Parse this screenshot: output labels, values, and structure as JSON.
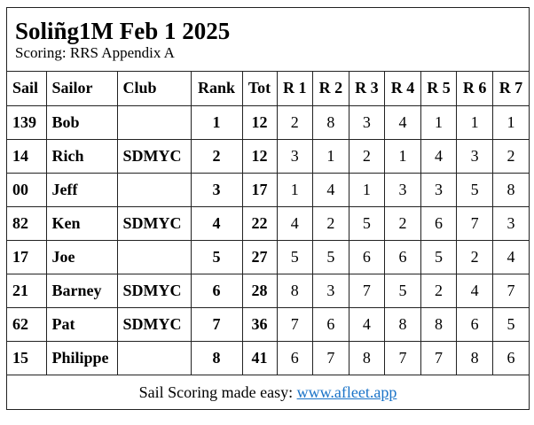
{
  "title": "Soliñg1M Feb 1 2025",
  "subtitle": "Scoring: RRS Appendix A",
  "columns": [
    "Sail",
    "Sailor",
    "Club",
    "Rank",
    "Tot",
    "R 1",
    "R 2",
    "R 3",
    "R 4",
    "R 5",
    "R 6",
    "R 7"
  ],
  "rows": [
    [
      "139",
      "Bob",
      "",
      "1",
      "12",
      "2",
      "8",
      "3",
      "4",
      "1",
      "1",
      "1"
    ],
    [
      "14",
      "Rich",
      "SDMYC",
      "2",
      "12",
      "3",
      "1",
      "2",
      "1",
      "4",
      "3",
      "2"
    ],
    [
      "00",
      "Jeff",
      "",
      "3",
      "17",
      "1",
      "4",
      "1",
      "3",
      "3",
      "5",
      "8"
    ],
    [
      "82",
      "Ken",
      "SDMYC",
      "4",
      "22",
      "4",
      "2",
      "5",
      "2",
      "6",
      "7",
      "3"
    ],
    [
      "17",
      "Joe",
      "",
      "5",
      "27",
      "5",
      "5",
      "6",
      "6",
      "5",
      "2",
      "4"
    ],
    [
      "21",
      "Barney",
      "SDMYC",
      "6",
      "28",
      "8",
      "3",
      "7",
      "5",
      "2",
      "4",
      "7"
    ],
    [
      "62",
      "Pat",
      "SDMYC",
      "7",
      "36",
      "7",
      "6",
      "4",
      "8",
      "8",
      "6",
      "5"
    ],
    [
      "15",
      "Philippe",
      "",
      "8",
      "41",
      "6",
      "7",
      "8",
      "7",
      "7",
      "8",
      "6"
    ]
  ],
  "footer": {
    "text": "Sail Scoring made easy: ",
    "link": "www.afleet.app",
    "link_color": "#1a73c8"
  }
}
